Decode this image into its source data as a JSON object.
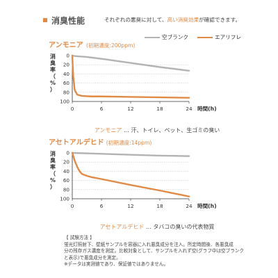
{
  "header": {
    "title": "消臭性能",
    "description_pre": "それぞれの悪臭に対して、",
    "description_highlight": "高い消臭効果",
    "description_post": "が確認できます。"
  },
  "legend": [
    {
      "name": "空ブランク",
      "color": "#b3b3b3"
    },
    {
      "name": "エアリフレ",
      "color": "#e08a46"
    }
  ],
  "chart_data": [
    {
      "type": "line",
      "title": "アンモニア",
      "subtitle": "(初期濃度:200ppm)",
      "xlabel": "時間(h)",
      "ylabel": "消臭率(%)",
      "ylabel_chars": [
        "消",
        "臭",
        "率",
        "（",
        "%",
        "）"
      ],
      "x_ticks": [
        0,
        6,
        12,
        18,
        24
      ],
      "y_ticks": [
        0,
        20,
        40,
        60,
        80,
        100
      ],
      "xlim": [
        0,
        24
      ],
      "ylim": [
        0,
        100
      ],
      "y_inverted": true,
      "grid": "horizontal dashed",
      "series": [
        {
          "name": "空ブランク",
          "color": "#b3b3b3",
          "x": [
            0,
            0.5,
            3,
            6,
            12,
            18,
            24
          ],
          "y": [
            0,
            1,
            3,
            7,
            16,
            25,
            33
          ]
        },
        {
          "name": "エアリフレ",
          "color": "#e08a46",
          "x": [
            0,
            0.2,
            0.5,
            1,
            2,
            4,
            6,
            12,
            18,
            24
          ],
          "y": [
            0,
            45,
            75,
            85,
            88,
            89,
            89,
            90,
            91,
            92
          ]
        }
      ]
    },
    {
      "type": "line",
      "title": "アセトアルデヒド",
      "subtitle": "(初期濃度:14ppm)",
      "xlabel": "時間(h)",
      "ylabel": "消臭率(%)",
      "ylabel_chars": [
        "消",
        "臭",
        "率",
        "（",
        "%",
        "）"
      ],
      "x_ticks": [
        0,
        6,
        12,
        18,
        24
      ],
      "y_ticks": [
        0,
        20,
        40,
        60,
        80,
        100
      ],
      "xlim": [
        0,
        24
      ],
      "ylim": [
        0,
        100
      ],
      "y_inverted": true,
      "grid": "horizontal dashed",
      "series": [
        {
          "name": "空ブランク",
          "color": "#b3b3b3",
          "x": [
            0,
            6,
            12,
            18,
            24
          ],
          "y": [
            0,
            2,
            4,
            6,
            7
          ]
        },
        {
          "name": "エアリフレ",
          "color": "#e08a46",
          "x": [
            0,
            0.5,
            1,
            1.5,
            2,
            3,
            4,
            6,
            12,
            18,
            24
          ],
          "y": [
            0,
            17,
            30,
            40,
            46,
            50,
            53,
            57,
            70,
            82,
            95
          ]
        }
      ]
    }
  ],
  "annotations": [
    {
      "highlight": "アンモニア",
      "text": " … 汗、トイレ、ペット、生ゴミの臭い"
    },
    {
      "highlight": "アセトアルデヒド",
      "text": " … タバコの臭いの代表物質"
    }
  ],
  "notes": {
    "heading": "【 試験方法 】",
    "lines": [
      "蛍光灯照射下、壁紙サンプルを容器に入れ悪臭成分を注入。所定時間後、各悪臭成",
      "分の残存ガス濃度を測定。比較対象として、サンプルを入れず空(グラフ中は空ブランク",
      "と表示)で悪臭成分を測定。"
    ],
    "footnote": "※データは実測値であり、保証値ではありません。"
  }
}
